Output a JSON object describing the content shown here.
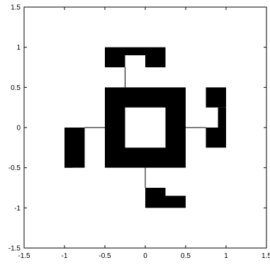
{
  "chart_data": {
    "type": "scatter",
    "title": "",
    "xlabel": "",
    "ylabel": "",
    "xlim": [
      -1.5,
      1.5
    ],
    "ylim": [
      -1.5,
      1.5
    ],
    "grid": false,
    "legend": "none",
    "xticks": [
      -1.5,
      -1,
      -0.5,
      0,
      0.5,
      1,
      1.5
    ],
    "yticks": [
      -1.5,
      -1,
      -0.5,
      0,
      0.5,
      1,
      1.5
    ],
    "xtick_labels": [
      "-1.5",
      "-1",
      "-0.5",
      "0",
      "0.5",
      "1",
      "1.5"
    ],
    "ytick_labels": [
      "-1.5",
      "-1",
      "-0.5",
      "0",
      "0.5",
      "1",
      "1.5"
    ],
    "series": [
      {
        "style": "filled-region",
        "regions": [
          {
            "x": [
              -0.5,
              0.5
            ],
            "y": [
              -0.5,
              0.5
            ]
          },
          {
            "x": [
              -0.5,
              -0.25
            ],
            "y": [
              1.0,
              0.75
            ]
          },
          {
            "x": [
              -0.25,
              0
            ],
            "y": [
              1.0,
              0.9
            ]
          },
          {
            "x": [
              0.0,
              0.25
            ],
            "y": [
              1.0,
              0.75
            ]
          },
          {
            "x": [
              0.75,
              1.0
            ],
            "y": [
              0.5,
              0.25
            ]
          },
          {
            "x": [
              1.0,
              0.9
            ],
            "y": [
              0.25,
              0.0
            ]
          },
          {
            "x": [
              0.75,
              1.0
            ],
            "y": [
              0.0,
              -0.25
            ]
          },
          {
            "x": [
              -1.0,
              -0.75
            ],
            "y": [
              0.0,
              -0.5
            ]
          },
          {
            "x": [
              -1.0,
              -0.9
            ],
            "y": [
              -0.25,
              -0.5
            ]
          },
          {
            "x": [
              0.0,
              0.25
            ],
            "y": [
              -0.75,
              -1.0
            ]
          },
          {
            "x": [
              0.25,
              0.5
            ],
            "y": [
              -0.85,
              -1.0
            ]
          }
        ],
        "color": "#000000"
      },
      {
        "style": "hole",
        "regions": [
          {
            "x": [
              -0.25,
              0.25
            ],
            "y": [
              -0.25,
              0.25
            ]
          }
        ],
        "color": "#ffffff"
      }
    ],
    "colors": {
      "fill": "#000000",
      "background": "#ffffff"
    }
  }
}
